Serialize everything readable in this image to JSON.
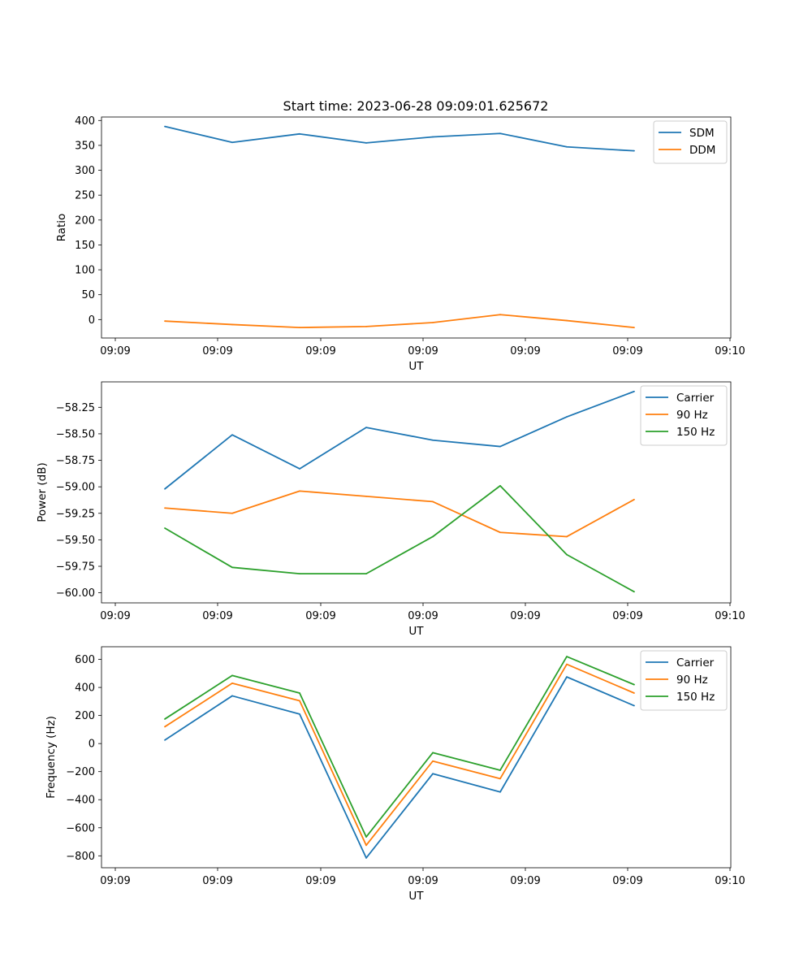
{
  "title": "Start time: 2023-06-28 09:09:01.625672",
  "chart_data": [
    {
      "type": "line",
      "ylabel": "Ratio",
      "xlabel": "UT",
      "x_tick_labels": [
        "09:09",
        "09:09",
        "09:09",
        "09:09",
        "09:09",
        "09:09",
        "09:10"
      ],
      "y_ticks": [
        0,
        50,
        100,
        150,
        200,
        250,
        300,
        350,
        400
      ],
      "ylim": [
        -37,
        407
      ],
      "legend": "top-right",
      "series": [
        {
          "name": "SDM",
          "color": "#1f77b4",
          "values": [
            388,
            356,
            373,
            355,
            367,
            374,
            347,
            339
          ]
        },
        {
          "name": "DDM",
          "color": "#ff7f0e",
          "values": [
            -3,
            -10,
            -16,
            -14,
            -6,
            10,
            -2,
            -16
          ]
        }
      ]
    },
    {
      "type": "line",
      "ylabel": "Power (dB)",
      "xlabel": "UT",
      "x_tick_labels": [
        "09:09",
        "09:09",
        "09:09",
        "09:09",
        "09:09",
        "09:09",
        "09:10"
      ],
      "y_ticks": [
        -60.0,
        -59.75,
        -59.5,
        -59.25,
        -59.0,
        -58.75,
        -58.5,
        -58.25
      ],
      "y_tick_labels": [
        "−60.00",
        "−59.75",
        "−59.50",
        "−59.25",
        "−59.00",
        "−58.75",
        "−58.50",
        "−58.25"
      ],
      "ylim": [
        -60.095,
        -58.01
      ],
      "legend": "top-right",
      "series": [
        {
          "name": "Carrier",
          "color": "#1f77b4",
          "values": [
            -59.02,
            -58.51,
            -58.83,
            -58.44,
            -58.56,
            -58.62,
            -58.34,
            -58.1
          ]
        },
        {
          "name": "90 Hz",
          "color": "#ff7f0e",
          "values": [
            -59.2,
            -59.25,
            -59.04,
            -59.09,
            -59.14,
            -59.43,
            -59.47,
            -59.12
          ]
        },
        {
          "name": "150 Hz",
          "color": "#2ca02c",
          "values": [
            -59.39,
            -59.76,
            -59.82,
            -59.82,
            -59.47,
            -58.99,
            -59.64,
            -59.99
          ]
        }
      ]
    },
    {
      "type": "line",
      "ylabel": "Frequency (Hz)",
      "xlabel": "UT",
      "x_tick_labels": [
        "09:09",
        "09:09",
        "09:09",
        "09:09",
        "09:09",
        "09:09",
        "09:10"
      ],
      "y_ticks": [
        -800,
        -600,
        -400,
        -200,
        0,
        200,
        400,
        600
      ],
      "y_tick_labels": [
        "−800",
        "−600",
        "−400",
        "−200",
        "0",
        "200",
        "400",
        "600"
      ],
      "ylim": [
        -885,
        690
      ],
      "legend": "top-right",
      "series": [
        {
          "name": "Carrier",
          "color": "#1f77b4",
          "values": [
            25,
            340,
            210,
            -815,
            -215,
            -345,
            475,
            270
          ]
        },
        {
          "name": "90 Hz",
          "color": "#ff7f0e",
          "values": [
            120,
            430,
            305,
            -725,
            -125,
            -250,
            565,
            360
          ]
        },
        {
          "name": "150 Hz",
          "color": "#2ca02c",
          "values": [
            175,
            485,
            360,
            -665,
            -65,
            -190,
            620,
            420
          ]
        }
      ]
    }
  ]
}
